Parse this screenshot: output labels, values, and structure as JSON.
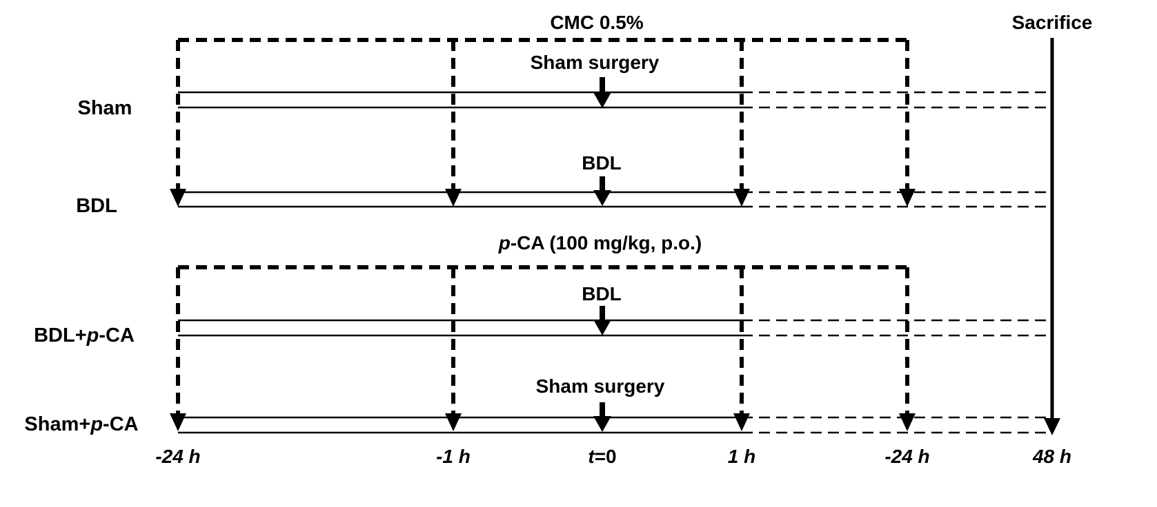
{
  "top_labels": {
    "vehicle": "CMC 0.5%",
    "sacrifice": "Sacrifice",
    "treatment_prefix": "p",
    "treatment_suffix": "-CA (100 mg/kg, p.o.)"
  },
  "groups": [
    {
      "name": "Sham",
      "event": "Sham surgery"
    },
    {
      "name": "BDL",
      "event": "BDL"
    },
    {
      "name_prefix": "BDL+",
      "name_italic": "p",
      "name_suffix": "-CA",
      "event": "BDL"
    },
    {
      "name_prefix": "Sham+",
      "name_italic": "p",
      "name_suffix": "-CA",
      "event": "Sham surgery"
    }
  ],
  "timepoints": [
    {
      "label": "-24 h"
    },
    {
      "label": "-1 h"
    },
    {
      "italic": "t",
      "rest": "=0"
    },
    {
      "label": "1 h"
    },
    {
      "label": "-24 h"
    },
    {
      "label": "48 h"
    }
  ]
}
